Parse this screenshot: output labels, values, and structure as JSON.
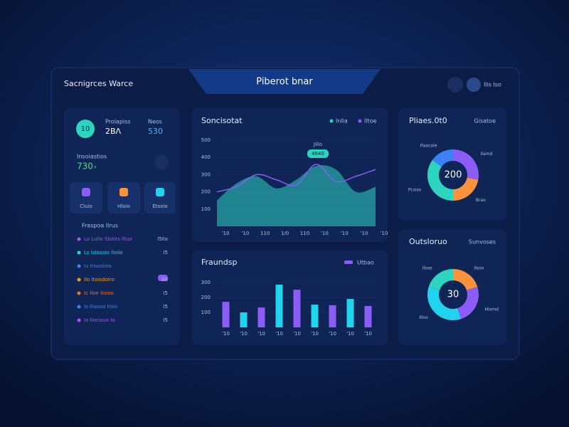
{
  "header": {
    "title": "Sacnigrces Warce",
    "tab": "Piberot bnar",
    "user": "Ilis Iso"
  },
  "summary": {
    "badge": "10",
    "stats": [
      {
        "label": "Prolapiss",
        "value": "2BΛ"
      },
      {
        "label": "Neos",
        "value": "530"
      }
    ],
    "metric_label": "Insoiastios",
    "metric_value": "730",
    "metric_unit": "₈"
  },
  "tiles": [
    "Cluio",
    "Hloio",
    "Etosio"
  ],
  "list": {
    "title": "Fraspoa Ilrus",
    "rows": [
      {
        "label": "Lo Lulio Stialrs Illuo",
        "value": "I5Ilo",
        "color": "#a855f7"
      },
      {
        "label": "Ls Islosoio Iloiio",
        "value": "I5",
        "color": "#22d3ee"
      },
      {
        "label": "Iu Inssoiies",
        "value": "",
        "color": "#3b82f6"
      },
      {
        "label": "Ilo Itoisdoiro",
        "value": "Ilo",
        "color": "#f59e0b"
      },
      {
        "label": "Ic Iloe Iloioo",
        "value": "I5",
        "color": "#f97316"
      },
      {
        "label": "Is Iliasoo Iloio",
        "value": "I5",
        "color": "#3b82f6"
      },
      {
        "label": "Io Ilocious Io",
        "value": "I5",
        "color": "#a855f7"
      }
    ]
  },
  "area_chart": {
    "type": "area",
    "title": "Soncisotat",
    "categories": [
      "'10",
      "'10",
      "110",
      "1/0",
      "110",
      "'10",
      "'10",
      "'10",
      "'10"
    ],
    "series": [
      {
        "name": "Inlla",
        "color": "#2dd4bf",
        "values": [
          150,
          250,
          290,
          220,
          270,
          350,
          330,
          200,
          230
        ]
      },
      {
        "name": "Iltoe",
        "color": "#8b5cf6",
        "values": [
          200,
          230,
          300,
          270,
          240,
          360,
          260,
          290,
          330
        ]
      }
    ],
    "ylim": [
      0,
      500
    ],
    "yticks": [
      100,
      200,
      300,
      400,
      500
    ],
    "annotation": [
      "Jillo",
      "4640"
    ]
  },
  "bar_chart": {
    "type": "bar",
    "title": "Fraundsp",
    "legend": "Utbao",
    "categories": [
      "'10",
      "'10",
      "'10",
      "'10",
      "'10",
      "'10",
      "'10",
      "'10",
      "'10"
    ],
    "values": [
      171,
      100,
      133,
      286,
      252,
      152,
      148,
      190,
      143
    ],
    "colors": [
      "#8b5cf6",
      "#22d3ee",
      "#8b5cf6",
      "#22d3ee",
      "#8b5cf6",
      "#22d3ee",
      "#8b5cf6",
      "#22d3ee",
      "#8b5cf6"
    ],
    "ylim": [
      0,
      300
    ],
    "yticks": [
      100,
      200,
      300
    ]
  },
  "donuts": [
    {
      "type": "donut",
      "title": "Pliaes.0t0",
      "subtitle": "Gisatoe",
      "center": "200",
      "labels": [
        "Ilamd",
        "Brao",
        "Pcsiso",
        "Ifaacole"
      ],
      "values": [
        28,
        22,
        35,
        15
      ],
      "colors": [
        "#8b5cf6",
        "#fb923c",
        "#2dd4bf",
        "#3b82f6"
      ]
    },
    {
      "type": "donut",
      "title": "Outsloruo",
      "subtitle": "Sunvoses",
      "center": "30",
      "labels": [
        "Ilsoo",
        "Hlamd",
        "Illoo",
        "Iloas"
      ],
      "values": [
        20,
        25,
        35,
        20
      ],
      "colors": [
        "#fb923c",
        "#8b5cf6",
        "#22d3ee",
        "#2dd4bf"
      ]
    }
  ]
}
